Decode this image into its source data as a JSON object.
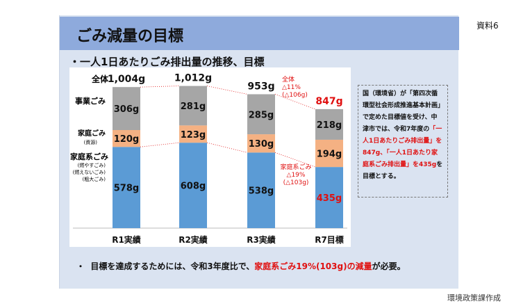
{
  "doc_no": "資料6",
  "credit": "環境政策課作成",
  "title": "ごみ減量の目標",
  "subtitle": "・一人1日あたりごみ排出量の推移、目標",
  "note": {
    "t1": "国（環境省）が「第四次循環型社会形成推進基本計画」で定めた目標値を受け、中津市では、令和7年度の",
    "t2": "「一人1日あたりごみ排出量」を847g、「一人1日あたり家庭系ごみ排出量」を435g",
    "t3": "を目標とする。"
  },
  "bottom": {
    "bullet": "・",
    "t1": "目標を達成するためには、令和3年度比で、",
    "t2": "家庭系ごみ19%(103g)の減量",
    "t3": "が必要。"
  },
  "chart_data": {
    "type": "bar",
    "stacked": true,
    "categories": [
      "R1実績",
      "R2実績",
      "R3実績",
      "R7目標"
    ],
    "series": [
      {
        "name": "家庭系ごみ",
        "sublabels": [
          "(燃やすごみ)",
          "(燃えないごみ)",
          "(粗大ごみ)"
        ],
        "color": "#5b9bd5",
        "values": [
          578,
          608,
          538,
          435
        ]
      },
      {
        "name": "家庭ごみ",
        "sublabels": [
          "(資源)"
        ],
        "color": "#f4b183",
        "values": [
          120,
          123,
          130,
          194
        ]
      },
      {
        "name": "事業ごみ",
        "sublabels": [],
        "color": "#a6a6a6",
        "values": [
          306,
          281,
          285,
          218
        ]
      }
    ],
    "totals": [
      1004,
      1012,
      953,
      847
    ],
    "total_labels": [
      "1,004g",
      "1,012g",
      "953g",
      "847g"
    ],
    "total_prefix": "全体",
    "unit": "g",
    "annotations": {
      "total": [
        "全体",
        "△11%",
        "(△106g)"
      ],
      "household": [
        "家庭系ごみ",
        "△19%",
        "(△103g)"
      ]
    },
    "accent": "#e01010"
  }
}
